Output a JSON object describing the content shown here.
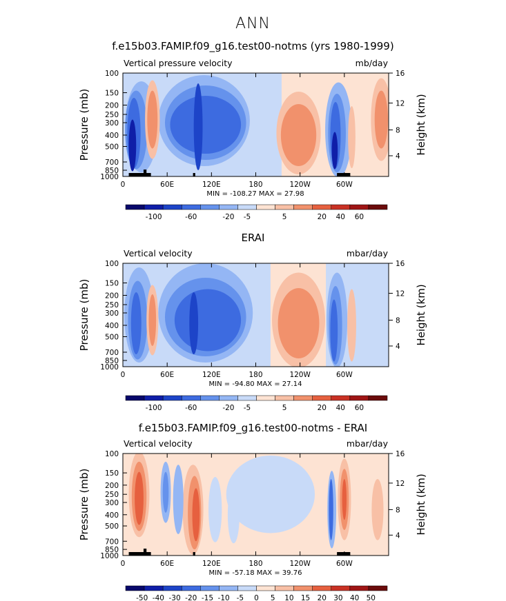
{
  "page_title": "ANN",
  "colors": {
    "palette": [
      "#08086b",
      "#0f1ea8",
      "#1d44c8",
      "#3d6be0",
      "#6592ec",
      "#94b6f4",
      "#c8daf8",
      "#fde3d3",
      "#f8c0a6",
      "#f1916c",
      "#e6603f",
      "#c93124",
      "#9f1515",
      "#6b0b0b"
    ]
  },
  "chart_data": [
    {
      "type": "heatmap",
      "title": "f.e15b03.FAMIP.f09_g16.test00-notms (yrs 1980-1999)",
      "variable": "Vertical pressure velocity",
      "units": "mb/day",
      "ylabel": "Pressure (mb)",
      "y2label": "Height (km)",
      "x_ticks": [
        "0",
        "60E",
        "120E",
        "180",
        "120W",
        "60W"
      ],
      "y_ticks": [
        "100",
        "150",
        "200",
        "250",
        "300",
        "400",
        "500",
        "700",
        "850",
        "1000"
      ],
      "height_ticks": [
        "16",
        "12",
        "8",
        "4"
      ],
      "stats": "MIN = -108.27   MAX =   27.98",
      "colorbar": [
        "-100",
        "-60",
        "-20",
        "-5",
        "5",
        "20",
        "40",
        "60"
      ]
    },
    {
      "type": "heatmap",
      "title": "ERAI",
      "variable": "Vertical velocity",
      "units": "mbar/day",
      "ylabel": "Pressure (mb)",
      "y2label": "Height (km)",
      "x_ticks": [
        "0",
        "60E",
        "120E",
        "180",
        "120W",
        "60W"
      ],
      "y_ticks": [
        "100",
        "150",
        "200",
        "250",
        "300",
        "400",
        "500",
        "700",
        "850",
        "1000"
      ],
      "height_ticks": [
        "16",
        "12",
        "8",
        "4"
      ],
      "stats": "MIN = -94.80   MAX =   27.14",
      "colorbar": [
        "-100",
        "-60",
        "-20",
        "-5",
        "5",
        "20",
        "40",
        "60"
      ]
    },
    {
      "type": "heatmap",
      "title": "f.e15b03.FAMIP.f09_g16.test00-notms - ERAI",
      "variable": "Vertical velocity",
      "units": "mbar/day",
      "ylabel": "Pressure (mb)",
      "y2label": "Height (km)",
      "x_ticks": [
        "0",
        "60E",
        "120E",
        "180",
        "120W",
        "60W"
      ],
      "y_ticks": [
        "100",
        "150",
        "200",
        "250",
        "300",
        "400",
        "500",
        "700",
        "850",
        "1000"
      ],
      "height_ticks": [
        "16",
        "12",
        "8",
        "4"
      ],
      "stats": "MIN = -57.18   MAX =   39.76",
      "colorbar": [
        "-50",
        "-40",
        "-30",
        "-20",
        "-15",
        "-10",
        "-5",
        "0",
        "5",
        "10",
        "15",
        "20",
        "30",
        "40",
        "50"
      ]
    }
  ]
}
